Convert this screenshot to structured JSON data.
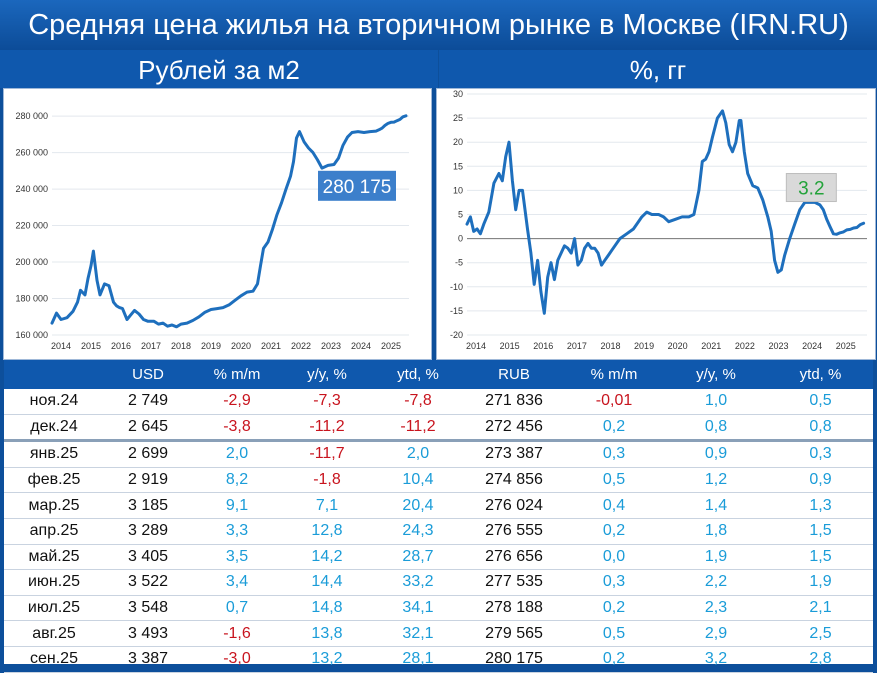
{
  "title": "Средняя цена жилья на вторичном рынке в Москве (IRN.RU)",
  "left_heading": "Рублей за м2",
  "right_heading": "%, гг",
  "colors": {
    "line": "#1e6fbd",
    "positive": "#1a9cd8",
    "negative": "#c8141e",
    "header_bg": "#0f58ad",
    "callout_left_bg": "#3c7fcb",
    "callout_right_text": "#23a33a"
  },
  "chart_data": [
    {
      "type": "line",
      "name": "price_rub_m2",
      "ylim": [
        160000,
        285000
      ],
      "yticks": [
        160000,
        180000,
        200000,
        220000,
        240000,
        260000,
        280000
      ],
      "ytick_labels": [
        "160 000",
        "180 000",
        "200 000",
        "220 000",
        "240 000",
        "260 000",
        "280 000"
      ],
      "xlim": [
        2014,
        2025.9
      ],
      "xticks": [
        2014,
        2015,
        2016,
        2017,
        2018,
        2019,
        2020,
        2021,
        2022,
        2023,
        2024,
        2025
      ],
      "xtick_labels": [
        "2014",
        "2015",
        "2016",
        "2017",
        "2018",
        "2019",
        "2020",
        "2021",
        "2022",
        "2023",
        "2024",
        "2025"
      ],
      "callout": "280 175",
      "points": [
        [
          2014.0,
          166500
        ],
        [
          2014.15,
          172000
        ],
        [
          2014.3,
          168500
        ],
        [
          2014.5,
          169500
        ],
        [
          2014.7,
          173000
        ],
        [
          2014.85,
          178000
        ],
        [
          2014.95,
          184500
        ],
        [
          2015.1,
          182000
        ],
        [
          2015.2,
          191000
        ],
        [
          2015.3,
          198000
        ],
        [
          2015.38,
          206000
        ],
        [
          2015.5,
          190000
        ],
        [
          2015.6,
          182000
        ],
        [
          2015.75,
          188000
        ],
        [
          2015.9,
          187000
        ],
        [
          2016.05,
          178000
        ],
        [
          2016.15,
          176000
        ],
        [
          2016.25,
          175000
        ],
        [
          2016.35,
          174500
        ],
        [
          2016.5,
          168500
        ],
        [
          2016.6,
          170500
        ],
        [
          2016.75,
          173500
        ],
        [
          2016.9,
          171500
        ],
        [
          2017.05,
          168500
        ],
        [
          2017.2,
          167500
        ],
        [
          2017.4,
          167500
        ],
        [
          2017.55,
          166000
        ],
        [
          2017.7,
          166500
        ],
        [
          2017.85,
          164800
        ],
        [
          2018.0,
          165500
        ],
        [
          2018.15,
          164500
        ],
        [
          2018.3,
          166000
        ],
        [
          2018.5,
          166500
        ],
        [
          2018.7,
          168000
        ],
        [
          2018.9,
          170000
        ],
        [
          2019.1,
          172500
        ],
        [
          2019.3,
          174000
        ],
        [
          2019.5,
          174500
        ],
        [
          2019.7,
          175000
        ],
        [
          2019.9,
          176500
        ],
        [
          2020.1,
          179000
        ],
        [
          2020.3,
          181500
        ],
        [
          2020.5,
          183500
        ],
        [
          2020.7,
          184000
        ],
        [
          2020.85,
          188000
        ],
        [
          2020.95,
          198000
        ],
        [
          2021.05,
          207500
        ],
        [
          2021.2,
          211000
        ],
        [
          2021.35,
          218000
        ],
        [
          2021.5,
          226000
        ],
        [
          2021.65,
          232500
        ],
        [
          2021.8,
          240000
        ],
        [
          2021.95,
          247000
        ],
        [
          2022.05,
          255000
        ],
        [
          2022.15,
          268000
        ],
        [
          2022.25,
          271500
        ],
        [
          2022.4,
          266000
        ],
        [
          2022.55,
          262500
        ],
        [
          2022.7,
          260000
        ],
        [
          2022.85,
          256000
        ],
        [
          2023.0,
          251500
        ],
        [
          2023.2,
          253000
        ],
        [
          2023.4,
          253500
        ],
        [
          2023.55,
          257000
        ],
        [
          2023.7,
          264000
        ],
        [
          2023.85,
          268500
        ],
        [
          2024.0,
          271000
        ],
        [
          2024.2,
          271500
        ],
        [
          2024.4,
          271000
        ],
        [
          2024.6,
          271500
        ],
        [
          2024.8,
          271800
        ],
        [
          2024.9,
          272500
        ],
        [
          2025.0,
          273400
        ],
        [
          2025.1,
          274900
        ],
        [
          2025.2,
          276000
        ],
        [
          2025.3,
          276600
        ],
        [
          2025.4,
          276700
        ],
        [
          2025.5,
          277500
        ],
        [
          2025.6,
          278200
        ],
        [
          2025.7,
          279600
        ],
        [
          2025.8,
          280175
        ]
      ]
    },
    {
      "type": "line",
      "name": "yoy_percent",
      "ylim": [
        -20,
        30
      ],
      "yticks": [
        -20,
        -15,
        -10,
        -5,
        0,
        5,
        10,
        15,
        20,
        25,
        30
      ],
      "ytick_labels": [
        "-20",
        "-15",
        "-10",
        "-5",
        "0",
        "5",
        "10",
        "15",
        "20",
        "25",
        "30"
      ],
      "xlim": [
        2014,
        2025.9
      ],
      "xticks": [
        2014,
        2015,
        2016,
        2017,
        2018,
        2019,
        2020,
        2021,
        2022,
        2023,
        2024,
        2025
      ],
      "xtick_labels": [
        "2014",
        "2015",
        "2016",
        "2017",
        "2018",
        "2019",
        "2020",
        "2021",
        "2022",
        "2023",
        "2024",
        "2025"
      ],
      "callout": "3.2",
      "points": [
        [
          2014.0,
          3
        ],
        [
          2014.1,
          4.5
        ],
        [
          2014.2,
          1.5
        ],
        [
          2014.3,
          2
        ],
        [
          2014.4,
          1
        ],
        [
          2014.5,
          3
        ],
        [
          2014.65,
          5.5
        ],
        [
          2014.8,
          11.5
        ],
        [
          2014.95,
          13.5
        ],
        [
          2015.05,
          12
        ],
        [
          2015.15,
          17
        ],
        [
          2015.25,
          20
        ],
        [
          2015.35,
          12
        ],
        [
          2015.45,
          6
        ],
        [
          2015.55,
          10
        ],
        [
          2015.65,
          10
        ],
        [
          2015.8,
          2
        ],
        [
          2015.9,
          -3
        ],
        [
          2016.0,
          -9.5
        ],
        [
          2016.1,
          -4.5
        ],
        [
          2016.2,
          -11
        ],
        [
          2016.3,
          -15.5
        ],
        [
          2016.4,
          -8
        ],
        [
          2016.5,
          -5
        ],
        [
          2016.6,
          -8.5
        ],
        [
          2016.7,
          -4.5
        ],
        [
          2016.8,
          -3
        ],
        [
          2016.9,
          -1.5
        ],
        [
          2017.0,
          -2
        ],
        [
          2017.1,
          -3
        ],
        [
          2017.2,
          0
        ],
        [
          2017.3,
          -5.5
        ],
        [
          2017.4,
          -4.5
        ],
        [
          2017.5,
          -2
        ],
        [
          2017.6,
          -1
        ],
        [
          2017.7,
          -2
        ],
        [
          2017.8,
          -2
        ],
        [
          2017.9,
          -3
        ],
        [
          2018.0,
          -5.5
        ],
        [
          2018.1,
          -4.5
        ],
        [
          2018.2,
          -3.5
        ],
        [
          2018.3,
          -2.5
        ],
        [
          2018.4,
          -1.5
        ],
        [
          2018.55,
          0
        ],
        [
          2018.75,
          1
        ],
        [
          2018.95,
          2
        ],
        [
          2019.2,
          4.5
        ],
        [
          2019.35,
          5.5
        ],
        [
          2019.5,
          5
        ],
        [
          2019.7,
          5
        ],
        [
          2019.85,
          4.5
        ],
        [
          2020.0,
          3.5
        ],
        [
          2020.2,
          4
        ],
        [
          2020.4,
          4.5
        ],
        [
          2020.6,
          4.5
        ],
        [
          2020.75,
          5
        ],
        [
          2020.9,
          10
        ],
        [
          2021.0,
          16
        ],
        [
          2021.1,
          16.5
        ],
        [
          2021.2,
          18
        ],
        [
          2021.3,
          21
        ],
        [
          2021.45,
          25
        ],
        [
          2021.6,
          26.5
        ],
        [
          2021.7,
          24
        ],
        [
          2021.8,
          19.5
        ],
        [
          2021.9,
          18
        ],
        [
          2022.0,
          20
        ],
        [
          2022.1,
          24.5
        ],
        [
          2022.15,
          24.5
        ],
        [
          2022.25,
          18
        ],
        [
          2022.35,
          13.5
        ],
        [
          2022.5,
          11
        ],
        [
          2022.65,
          10.5
        ],
        [
          2022.8,
          8
        ],
        [
          2022.95,
          4.5
        ],
        [
          2023.05,
          1.5
        ],
        [
          2023.15,
          -4.5
        ],
        [
          2023.25,
          -7
        ],
        [
          2023.35,
          -6.5
        ],
        [
          2023.45,
          -3.5
        ],
        [
          2023.6,
          0
        ],
        [
          2023.75,
          3
        ],
        [
          2023.9,
          6
        ],
        [
          2024.05,
          7.5
        ],
        [
          2024.2,
          7.5
        ],
        [
          2024.35,
          7.5
        ],
        [
          2024.5,
          7
        ],
        [
          2024.6,
          6
        ],
        [
          2024.7,
          4
        ],
        [
          2024.8,
          2.5
        ],
        [
          2024.9,
          1
        ],
        [
          2025.0,
          0.9
        ],
        [
          2025.1,
          1.2
        ],
        [
          2025.2,
          1.4
        ],
        [
          2025.3,
          1.8
        ],
        [
          2025.4,
          1.9
        ],
        [
          2025.5,
          2.2
        ],
        [
          2025.6,
          2.3
        ],
        [
          2025.7,
          2.9
        ],
        [
          2025.8,
          3.2
        ]
      ]
    }
  ],
  "table": {
    "headers": [
      "",
      "USD",
      "% m/m",
      "y/y, %",
      "ytd, %",
      "RUB",
      "% m/m",
      "y/y, %",
      "ytd, %"
    ],
    "rows": [
      [
        "ноя.24",
        "2 749",
        "-2,9",
        "-7,3",
        "-7,8",
        "271 836",
        "-0,01",
        "1,0",
        "0,5"
      ],
      [
        "дек.24",
        "2 645",
        "-3,8",
        "-11,2",
        "-11,2",
        "272 456",
        "0,2",
        "0,8",
        "0,8"
      ],
      [
        "янв.25",
        "2 699",
        "2,0",
        "-11,7",
        "2,0",
        "273 387",
        "0,3",
        "0,9",
        "0,3"
      ],
      [
        "фев.25",
        "2 919",
        "8,2",
        "-1,8",
        "10,4",
        "274 856",
        "0,5",
        "1,2",
        "0,9"
      ],
      [
        "мар.25",
        "3 185",
        "9,1",
        "7,1",
        "20,4",
        "276 024",
        "0,4",
        "1,4",
        "1,3"
      ],
      [
        "апр.25",
        "3 289",
        "3,3",
        "12,8",
        "24,3",
        "276 555",
        "0,2",
        "1,8",
        "1,5"
      ],
      [
        "май.25",
        "3 405",
        "3,5",
        "14,2",
        "28,7",
        "276 656",
        "0,0",
        "1,9",
        "1,5"
      ],
      [
        "июн.25",
        "3 522",
        "3,4",
        "14,4",
        "33,2",
        "277 535",
        "0,3",
        "2,2",
        "1,9"
      ],
      [
        "июл.25",
        "3 548",
        "0,7",
        "14,8",
        "34,1",
        "278 188",
        "0,2",
        "2,3",
        "2,1"
      ],
      [
        "авг.25",
        "3 493",
        "-1,6",
        "13,8",
        "32,1",
        "279 565",
        "0,5",
        "2,9",
        "2,5"
      ],
      [
        "сен.25",
        "3 387",
        "-3,0",
        "13,2",
        "28,1",
        "280 175",
        "0,2",
        "3,2",
        "2,8"
      ]
    ]
  }
}
